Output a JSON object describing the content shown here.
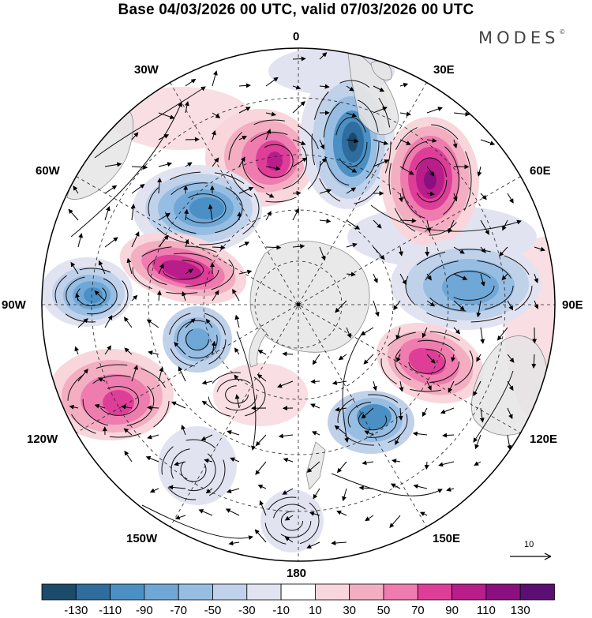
{
  "title": "Base 04/03/2026 00 UTC, valid 07/03/2026 00 UTC",
  "logo": "MODES",
  "logo_mark": "©",
  "longitude_labels": {
    "n0": "0",
    "e30": "30E",
    "e60": "60E",
    "e90": "90E",
    "e120": "120E",
    "e150": "150E",
    "s180": "180",
    "w150": "150W",
    "w120": "120W",
    "w90": "90W",
    "w60": "60W",
    "w30": "30W"
  },
  "reference_vector": {
    "label": "10"
  },
  "colorbar": {
    "ticks": [
      "-130",
      "-110",
      "-90",
      "-70",
      "-50",
      "-30",
      "-10",
      "10",
      "30",
      "50",
      "70",
      "90",
      "110",
      "130"
    ],
    "colors": [
      "#1b4a6b",
      "#2e6d9e",
      "#4a90c4",
      "#6fa8d6",
      "#97bde3",
      "#c0d1ea",
      "#e2e3f1",
      "#ffffff",
      "#f8d6dc",
      "#f3aec2",
      "#ee7cae",
      "#de3e98",
      "#b91d8a",
      "#8a1082",
      "#5b0f73"
    ]
  }
}
